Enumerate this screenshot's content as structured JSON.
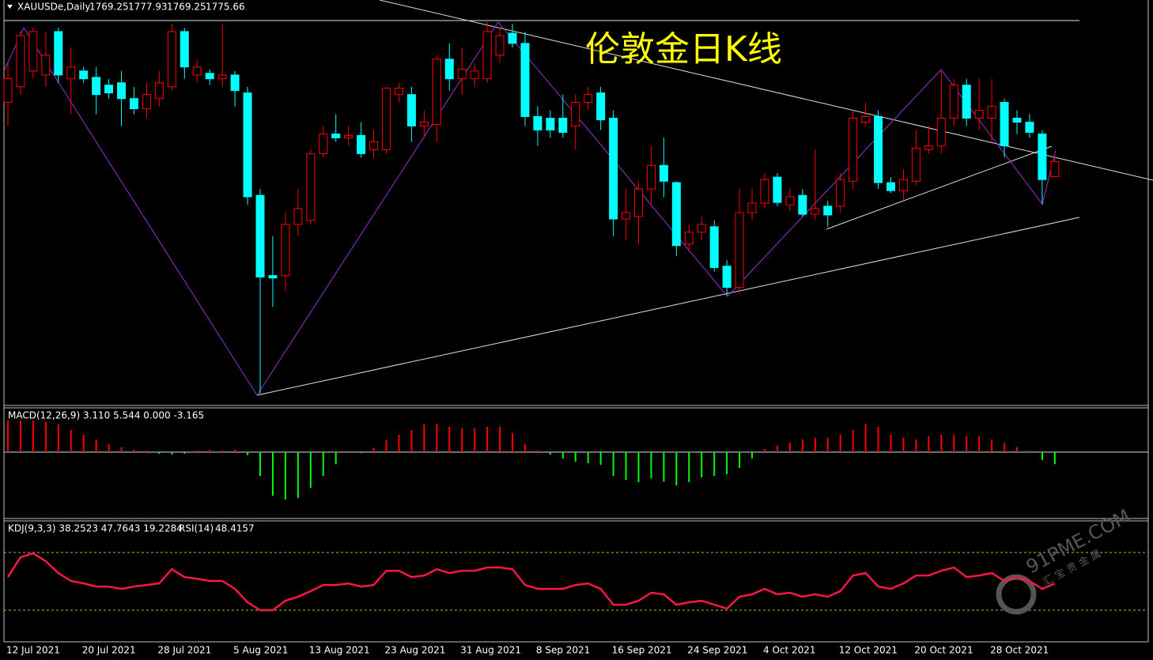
{
  "chart_data": [
    {
      "type": "candlestick",
      "title": "伦敦金日K线",
      "symbol": "XAUUSDe,Daily",
      "up_color": "#ff0000",
      "down_color": "#00ffff",
      "categories": [
        "12 Jul 2021",
        null,
        null,
        null,
        null,
        null,
        "20 Jul 2021",
        null,
        null,
        null,
        null,
        null,
        "28 Jul 2021",
        null,
        null,
        null,
        null,
        null,
        "5 Aug 2021",
        null,
        null,
        null,
        null,
        null,
        "13 Aug 2021",
        null,
        null,
        null,
        null,
        null,
        "23 Aug 2021",
        null,
        null,
        null,
        null,
        null,
        "31 Aug 2021",
        null,
        null,
        null,
        null,
        null,
        "8 Sep 2021",
        null,
        null,
        null,
        null,
        null,
        "16 Sep 2021",
        null,
        null,
        null,
        null,
        null,
        "24 Sep 2021",
        null,
        null,
        null,
        null,
        null,
        "4 Oct 2021",
        null,
        null,
        null,
        null,
        null,
        "12 Oct 2021",
        null,
        null,
        null,
        null,
        null,
        "20 Oct 2021",
        null,
        null,
        null,
        null,
        null,
        "28 Oct 2021",
        null,
        null,
        null,
        null,
        null
      ],
      "ohlc": [
        [
          1800.7,
          1817.3,
          1790.7,
          1810.7
        ],
        [
          1807.3,
          1830.7,
          1804.0,
          1829.0
        ],
        [
          1814.0,
          1832.3,
          1810.7,
          1830.7
        ],
        [
          1812.3,
          1830.7,
          1807.3,
          1820.7
        ],
        [
          1830.7,
          1832.3,
          1809.0,
          1812.3
        ],
        [
          1810.7,
          1824.0,
          1795.7,
          1815.7
        ],
        [
          1814.0,
          1815.7,
          1809.0,
          1810.7
        ],
        [
          1811.3,
          1815.7,
          1795.7,
          1804.0
        ],
        [
          1808.0,
          1810.7,
          1802.3,
          1804.7
        ],
        [
          1809.0,
          1814.0,
          1790.7,
          1802.3
        ],
        [
          1802.3,
          1807.3,
          1795.7,
          1798.0
        ],
        [
          1798.0,
          1809.0,
          1794.0,
          1804.0
        ],
        [
          1802.3,
          1814.0,
          1799.0,
          1809.0
        ],
        [
          1807.3,
          1834.0,
          1805.7,
          1830.7
        ],
        [
          1830.7,
          1832.3,
          1810.7,
          1815.7
        ],
        [
          1812.3,
          1819.0,
          1809.0,
          1815.7
        ],
        [
          1813.0,
          1814.7,
          1808.0,
          1810.7
        ],
        [
          1810.7,
          1834.0,
          1807.3,
          1812.3
        ],
        [
          1812.3,
          1814.0,
          1799.0,
          1805.7
        ],
        [
          1804.7,
          1807.3,
          1757.3,
          1760.7
        ],
        [
          1761.3,
          1764.0,
          1677.3,
          1726.7
        ],
        [
          1727.3,
          1744.0,
          1714.0,
          1726.3
        ],
        [
          1727.3,
          1754.0,
          1720.7,
          1749.0
        ],
        [
          1749.0,
          1764.0,
          1744.0,
          1755.7
        ],
        [
          1750.7,
          1780.7,
          1749.0,
          1779.0
        ],
        [
          1779.0,
          1790.7,
          1777.3,
          1787.3
        ],
        [
          1787.3,
          1795.7,
          1784.0,
          1785.7
        ],
        [
          1785.7,
          1790.7,
          1782.3,
          1786.7
        ],
        [
          1786.7,
          1792.3,
          1777.3,
          1779.0
        ],
        [
          1780.7,
          1789.0,
          1777.3,
          1784.0
        ],
        [
          1780.7,
          1807.3,
          1779.0,
          1806.7
        ],
        [
          1804.0,
          1809.0,
          1800.7,
          1806.7
        ],
        [
          1804.0,
          1807.3,
          1784.0,
          1790.7
        ],
        [
          1790.7,
          1797.3,
          1785.7,
          1792.3
        ],
        [
          1791.3,
          1820.7,
          1784.0,
          1819.0
        ],
        [
          1819.0,
          1825.7,
          1805.7,
          1810.7
        ],
        [
          1810.7,
          1824.0,
          1804.0,
          1814.7
        ],
        [
          1810.7,
          1817.3,
          1807.3,
          1814.0
        ],
        [
          1810.7,
          1834.7,
          1809.0,
          1830.7
        ],
        [
          1820.7,
          1832.3,
          1817.3,
          1829.0
        ],
        [
          1830.0,
          1834.0,
          1824.0,
          1825.7
        ],
        [
          1825.7,
          1830.7,
          1790.7,
          1794.7
        ],
        [
          1794.7,
          1799.0,
          1782.3,
          1789.0
        ],
        [
          1794.0,
          1797.3,
          1785.7,
          1789.0
        ],
        [
          1794.0,
          1804.0,
          1785.7,
          1788.0
        ],
        [
          1790.7,
          1804.0,
          1780.7,
          1800.7
        ],
        [
          1800.7,
          1807.3,
          1797.3,
          1804.0
        ],
        [
          1804.7,
          1807.3,
          1789.0,
          1793.3
        ],
        [
          1794.0,
          1797.3,
          1744.0,
          1751.3
        ],
        [
          1751.3,
          1764.0,
          1742.3,
          1754.0
        ],
        [
          1752.3,
          1767.3,
          1740.7,
          1764.0
        ],
        [
          1764.0,
          1782.3,
          1757.3,
          1774.0
        ],
        [
          1774.0,
          1785.7,
          1760.7,
          1767.3
        ],
        [
          1766.7,
          1767.3,
          1735.7,
          1740.0
        ],
        [
          1740.7,
          1749.0,
          1737.3,
          1745.7
        ],
        [
          1745.7,
          1752.3,
          1742.3,
          1749.0
        ],
        [
          1748.0,
          1750.7,
          1729.0,
          1730.7
        ],
        [
          1731.3,
          1734.0,
          1719.0,
          1722.3
        ],
        [
          1722.3,
          1764.0,
          1720.0,
          1754.0
        ],
        [
          1754.0,
          1764.0,
          1750.7,
          1758.0
        ],
        [
          1758.0,
          1770.7,
          1755.7,
          1768.0
        ],
        [
          1769.0,
          1770.7,
          1756.7,
          1758.3
        ],
        [
          1757.3,
          1764.0,
          1754.7,
          1760.7
        ],
        [
          1761.3,
          1764.0,
          1752.3,
          1753.3
        ],
        [
          1753.3,
          1780.7,
          1750.7,
          1755.7
        ],
        [
          1756.7,
          1759.0,
          1748.0,
          1753.0
        ],
        [
          1756.7,
          1770.7,
          1754.0,
          1768.0
        ],
        [
          1767.3,
          1797.3,
          1764.0,
          1794.0
        ],
        [
          1792.3,
          1800.7,
          1790.7,
          1794.7
        ],
        [
          1794.7,
          1797.3,
          1764.0,
          1766.7
        ],
        [
          1766.7,
          1769.0,
          1762.3,
          1763.3
        ],
        [
          1763.3,
          1772.3,
          1759.0,
          1768.0
        ],
        [
          1767.3,
          1789.0,
          1765.7,
          1781.3
        ],
        [
          1780.7,
          1790.7,
          1779.0,
          1782.3
        ],
        [
          1782.3,
          1814.0,
          1779.0,
          1794.0
        ],
        [
          1794.0,
          1810.7,
          1790.7,
          1808.0
        ],
        [
          1808.0,
          1810.7,
          1790.7,
          1794.0
        ],
        [
          1794.0,
          1810.7,
          1789.0,
          1797.3
        ],
        [
          1794.0,
          1810.7,
          1784.0,
          1799.0
        ],
        [
          1800.7,
          1802.3,
          1777.3,
          1782.3
        ],
        [
          1794.0,
          1797.3,
          1787.3,
          1792.3
        ],
        [
          1792.3,
          1795.7,
          1785.7,
          1788.0
        ],
        [
          1787.3,
          1789.0,
          1757.3,
          1768.0
        ],
        [
          1769.25,
          1777.93,
          1769.25,
          1775.66
        ]
      ]
    },
    {
      "type": "histogram",
      "title": "MACD(12,26,9) 3.110 5.544 0.000 -3.165",
      "up_color": "#ff0000",
      "down_color": "#00ff00",
      "values": [
        10,
        10,
        10,
        9.5,
        8.8,
        7,
        5.5,
        4,
        2.5,
        1.5,
        0.8,
        0.5,
        -0.5,
        -0.8,
        -0.5,
        0.5,
        0.8,
        0.5,
        0.8,
        -1,
        -7.5,
        -13.8,
        -15,
        -14.5,
        -11.3,
        -7.5,
        -3.8,
        0,
        -0.3,
        1.3,
        3.8,
        5.5,
        7,
        8.8,
        9,
        8,
        7.5,
        7.5,
        8,
        8,
        6,
        2.5,
        0.5,
        -0.8,
        -2,
        -3,
        -3.5,
        -4,
        -7.5,
        -8.8,
        -9.5,
        -8.3,
        -9.3,
        -10.5,
        -9.5,
        -8,
        -7.5,
        -7,
        -5,
        -2,
        1,
        2,
        3,
        4,
        4.5,
        4.5,
        5.5,
        7,
        9,
        8,
        5.5,
        4.5,
        4,
        5,
        5.5,
        5.5,
        5,
        5,
        4,
        3,
        1.5,
        0.5,
        -2.5,
        -3.8
      ]
    },
    {
      "type": "line",
      "title": "KDJ(9,3,3) 38.2523 47.7643 19.2284",
      "series": [
        {
          "name": "RSI(14)",
          "color": "#ff1744",
          "values": [
            53.0,
            66.7,
            69.5,
            64.0,
            55.8,
            50.3,
            48.6,
            46.4,
            46.4,
            44.8,
            46.4,
            47.5,
            48.6,
            58.5,
            53.0,
            51.9,
            50.3,
            50.3,
            44.8,
            35.5,
            30.0,
            30.0,
            36.6,
            39.3,
            43.2,
            47.5,
            47.5,
            48.6,
            46.4,
            47.5,
            57.4,
            57.4,
            53.0,
            54.1,
            58.5,
            55.8,
            57.4,
            57.4,
            59.6,
            59.6,
            58.5,
            47.5,
            44.8,
            44.8,
            44.8,
            47.5,
            48.6,
            44.8,
            33.8,
            33.8,
            36.6,
            42.1,
            41.0,
            33.8,
            35.5,
            36.6,
            33.8,
            31.1,
            39.3,
            41.0,
            44.8,
            41.0,
            42.1,
            39.3,
            41.0,
            39.3,
            43.2,
            54.1,
            55.8,
            46.4,
            44.8,
            48.6,
            54.1,
            54.1,
            57.4,
            59.6,
            53.0,
            54.1,
            55.8,
            50.3,
            53.0,
            50.3,
            44.8,
            48.4157
          ]
        }
      ]
    }
  ],
  "watermark": [
    "91PME.COM",
    "汇宝贵金属"
  ]
}
